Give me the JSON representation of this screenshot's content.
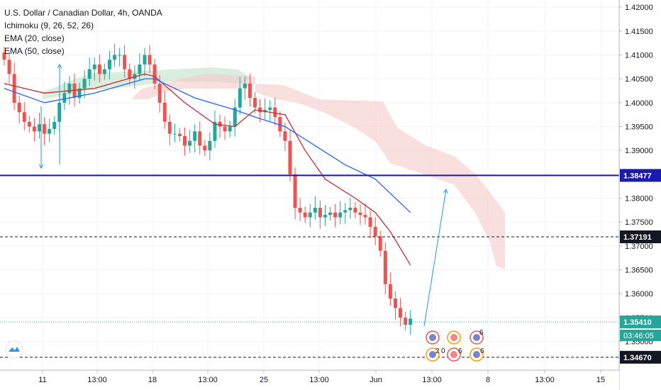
{
  "legend": {
    "title": "U.S. Dollar / Canadian Dollar, 4h, OANDA",
    "indicators": [
      "Ichimoku (9, 26, 52, 26)",
      "EMA (20, close)",
      "EMA (50, close)"
    ]
  },
  "colors": {
    "up": "#26a69a",
    "down": "#ef5350",
    "ema20": "#c62828",
    "ema50": "#2962ff",
    "resistance": "#1a1aab",
    "cloud_bear": "#f7c9c9",
    "cloud_bull": "#b9e0c3",
    "arrow": "#2196f3",
    "current": "#26a69a"
  },
  "chart_data": {
    "type": "candlestick",
    "symbol": "U.S. Dollar / Canadian Dollar",
    "timeframe": "4h",
    "source": "OANDA",
    "y_ticks": [
      "1.42000",
      "1.41500",
      "1.41000",
      "1.40500",
      "1.40000",
      "1.39500",
      "1.39000",
      "1.38500",
      "1.38000",
      "1.37500",
      "1.37000",
      "1.36500",
      "1.36000",
      "1.35500",
      "1.35000"
    ],
    "ylim": [
      1.344,
      1.4215
    ],
    "x_ticks": [
      "11",
      "13:00",
      "18",
      "13:00",
      "25",
      "13:00",
      "Jun",
      "13:00",
      "8",
      "13:00",
      "15"
    ],
    "levels": [
      {
        "label": "1.38477",
        "value": 1.38477,
        "style": "solid"
      },
      {
        "label": "1.37191",
        "value": 1.37191,
        "style": "dashed"
      },
      {
        "label": "1.35410",
        "value": 1.3541,
        "style": "dotted"
      },
      {
        "label": "1.34670",
        "value": 1.3467,
        "style": "dashed"
      }
    ],
    "countdown": "03:46:05",
    "event_counts": [
      "6",
      "2",
      "0",
      "6",
      "6"
    ],
    "close_series": [
      1.409,
      1.406,
      1.4,
      1.398,
      1.396,
      1.395,
      1.394,
      1.3955,
      1.3935,
      1.3945,
      1.396,
      1.4,
      1.402,
      1.404,
      1.401,
      1.403,
      1.405,
      1.407,
      1.408,
      1.406,
      1.407,
      1.409,
      1.41,
      1.41,
      1.407,
      1.405,
      1.406,
      1.408,
      1.41,
      1.408,
      1.404,
      1.4,
      1.396,
      1.3935,
      1.3935,
      1.393,
      1.391,
      1.392,
      1.394,
      1.391,
      1.39,
      1.392,
      1.396,
      1.395,
      1.394,
      1.395,
      1.399,
      1.403,
      1.404,
      1.401,
      1.399,
      1.398,
      1.3985,
      1.399,
      1.397,
      1.394,
      1.392,
      1.385,
      1.378,
      1.377,
      1.376,
      1.377,
      1.378,
      1.376,
      1.3765,
      1.377,
      1.376,
      1.377,
      1.3775,
      1.378,
      1.377,
      1.3765,
      1.376,
      1.374,
      1.372,
      1.369,
      1.362,
      1.359,
      1.357,
      1.355,
      1.3535,
      1.3548
    ],
    "ema20": [
      [
        1.404,
        0
      ],
      [
        1.402,
        8
      ],
      [
        1.403,
        18
      ],
      [
        1.406,
        28
      ],
      [
        1.4055,
        30
      ],
      [
        1.4,
        36
      ],
      [
        1.3955,
        42
      ],
      [
        1.395,
        46
      ],
      [
        1.3985,
        50
      ],
      [
        1.3975,
        56
      ],
      [
        1.39,
        60
      ],
      [
        1.384,
        64
      ],
      [
        1.38,
        70
      ],
      [
        1.377,
        74
      ],
      [
        1.373,
        77
      ],
      [
        1.366,
        81
      ]
    ],
    "ema50": [
      [
        1.403,
        0
      ],
      [
        1.4,
        8
      ],
      [
        1.402,
        18
      ],
      [
        1.405,
        28
      ],
      [
        1.405,
        30
      ],
      [
        1.401,
        38
      ],
      [
        1.3985,
        46
      ],
      [
        1.397,
        50
      ],
      [
        1.395,
        56
      ],
      [
        1.391,
        62
      ],
      [
        1.387,
        68
      ],
      [
        1.384,
        74
      ],
      [
        1.377,
        81
      ]
    ]
  }
}
